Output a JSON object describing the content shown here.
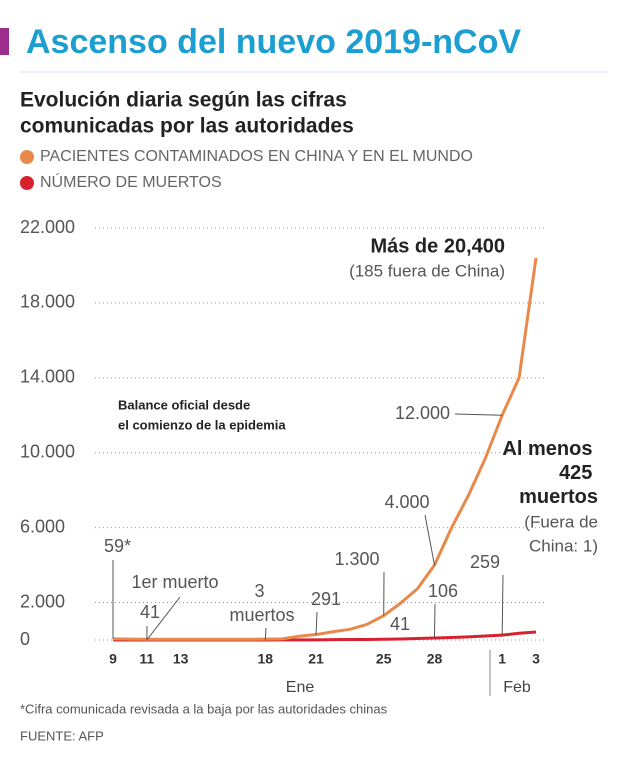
{
  "chart_data": {
    "type": "line",
    "title": "Ascenso del nuevo 2019-nCoV",
    "subtitle": [
      "Evolución diaria según las cifras",
      "comunicadas por las autoridades"
    ],
    "categories": [
      "9",
      null,
      "11",
      null,
      "13",
      null,
      null,
      null,
      null,
      "18",
      null,
      null,
      "21",
      null,
      null,
      null,
      "25",
      null,
      null,
      "28",
      null,
      null,
      null,
      "1",
      null,
      "3"
    ],
    "x_groups": [
      "Ene",
      "Feb"
    ],
    "series": [
      {
        "name": "PACIENTES CONTAMINADOS EN CHINA Y EN EL MUNDO",
        "color": "#e8894a",
        "values": [
          59,
          50,
          41,
          41,
          41,
          41,
          41,
          41,
          41,
          45,
          62,
          200,
          291,
          440,
          571,
          830,
          1300,
          1975,
          2744,
          4000,
          5974,
          7711,
          9692,
          12000,
          14000,
          20400
        ],
        "value_labels": [
          "59*",
          null,
          "41",
          null,
          null,
          null,
          null,
          null,
          null,
          null,
          null,
          null,
          "291",
          null,
          null,
          null,
          "1.300",
          null,
          null,
          "4.000",
          null,
          null,
          null,
          "12.000",
          null,
          "Más de 20,400"
        ]
      },
      {
        "name": "NÚMERO DE MUERTOS",
        "color": "#d8212f",
        "values": [
          0,
          0,
          1,
          1,
          1,
          1,
          1,
          1,
          1,
          3,
          4,
          6,
          9,
          17,
          25,
          26,
          41,
          56,
          80,
          106,
          132,
          170,
          213,
          259,
          361,
          425
        ],
        "value_labels": [
          null,
          null,
          "1er muerto",
          null,
          null,
          null,
          null,
          null,
          null,
          "3 muertos",
          null,
          null,
          null,
          null,
          null,
          null,
          "41",
          null,
          null,
          "106",
          null,
          null,
          null,
          "259",
          null,
          "Al menos 425 muertos"
        ]
      }
    ],
    "annotations": {
      "cases_note": [
        "(185 fuera de China)"
      ],
      "deaths_note": [
        "(Fuera de",
        "China: 1)"
      ],
      "balance": [
        "Balance oficial desde",
        "el comienzo de la epidemia"
      ]
    },
    "ylim": [
      0,
      22000
    ],
    "yticks": [
      {
        "value": 22000,
        "label": "22.000"
      },
      {
        "value": 18000,
        "label": "18.000"
      },
      {
        "value": 14000,
        "label": "14.000"
      },
      {
        "value": 10000,
        "label": "10.000"
      },
      {
        "value": 6000,
        "label": "6.000"
      },
      {
        "value": 2000,
        "label": "2.000"
      },
      0
    ],
    "grid": true,
    "footnote": "*Cifra comunicada revisada a la baja por las autoridades chinas",
    "source": "FUENTE: AFP"
  }
}
